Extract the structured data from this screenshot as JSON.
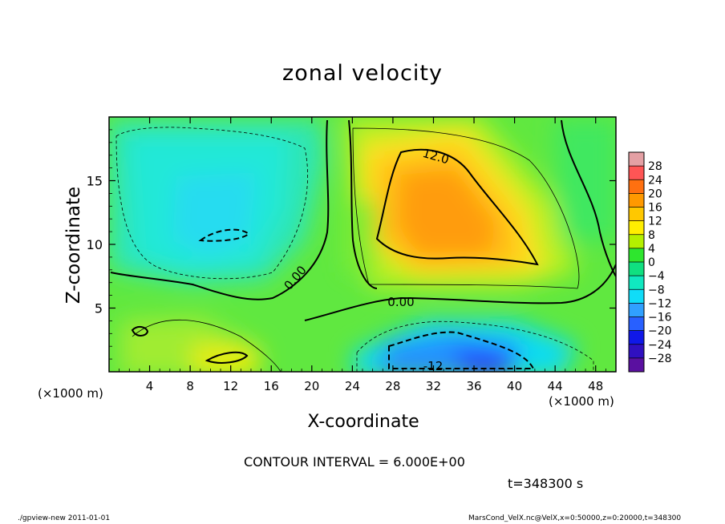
{
  "chart_data": {
    "type": "heatmap",
    "title": "zonal velocity",
    "xlabel": "X-coordinate",
    "ylabel": "Z-coordinate",
    "x_unit": "(×1000 m)",
    "x_unit_right": "(×1000 m)",
    "xlim": [
      0,
      50
    ],
    "ylim": [
      0,
      20
    ],
    "x_ticks": [
      4,
      8,
      12,
      16,
      20,
      24,
      28,
      32,
      36,
      40,
      44,
      48
    ],
    "y_ticks": [
      5,
      10,
      15
    ],
    "colorbar": {
      "levels": [
        28,
        24,
        20,
        16,
        12,
        8,
        4,
        0,
        -4,
        -8,
        -12,
        -16,
        -20,
        -24,
        -28
      ],
      "colors": [
        "#e4a0a4",
        "#ff5555",
        "#ff7010",
        "#ff9900",
        "#ffc800",
        "#ffee00",
        "#b4f000",
        "#2ee62e",
        "#10e080",
        "#10e8c0",
        "#10dcf8",
        "#30a0ff",
        "#2860ff",
        "#1018e8",
        "#3010c0",
        "#5a10a0"
      ]
    },
    "contour_labels": [
      "12.0",
      "0.00",
      "0.00",
      "-12"
    ],
    "contour_interval_text": "CONTOUR INTERVAL = 6.000E+00",
    "time_text": "t=348300 s"
  },
  "footer": {
    "left": "./gpview-new  2011-01-01",
    "right": "MarsCond_VelX.nc@VelX,x=0:50000,z=0:20000,t=348300"
  }
}
